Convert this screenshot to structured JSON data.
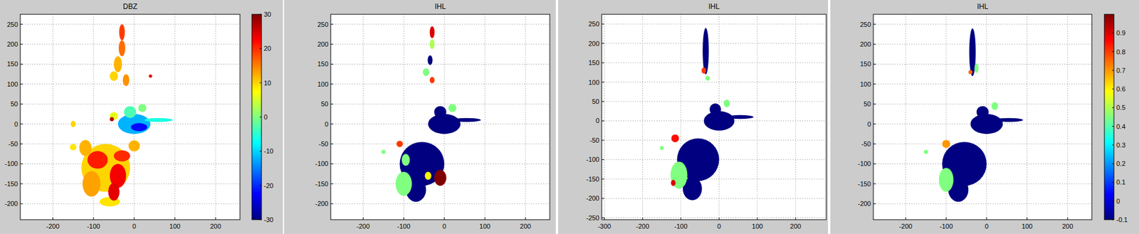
{
  "chart_data": [
    {
      "type": "heatmap",
      "title": "DBZ",
      "xlim": [
        -280,
        260
      ],
      "ylim": [
        -240,
        275
      ],
      "xticks": [
        -200,
        -100,
        0,
        100,
        200
      ],
      "yticks": [
        -200,
        -150,
        -100,
        -50,
        0,
        50,
        100,
        150,
        200,
        250
      ],
      "grid": true,
      "colorbar": true,
      "clim": [
        -30,
        30
      ],
      "cticks": [
        -30,
        -20,
        -10,
        0,
        10,
        20,
        30
      ],
      "blobs": [
        {
          "x": -70,
          "y": -110,
          "rx": 60,
          "ry": 60,
          "value": 10
        },
        {
          "x": -60,
          "y": -195,
          "rx": 25,
          "ry": 12,
          "value": 9
        },
        {
          "x": -105,
          "y": -150,
          "rx": 22,
          "ry": 32,
          "value": 13
        },
        {
          "x": -120,
          "y": -60,
          "rx": 15,
          "ry": 20,
          "value": 12
        },
        {
          "x": -90,
          "y": -90,
          "rx": 25,
          "ry": 22,
          "value": 21
        },
        {
          "x": -40,
          "y": -130,
          "rx": 20,
          "ry": 30,
          "value": 23
        },
        {
          "x": -30,
          "y": -80,
          "rx": 20,
          "ry": 14,
          "value": 20
        },
        {
          "x": -50,
          "y": -170,
          "rx": 14,
          "ry": 22,
          "value": 24
        },
        {
          "x": 0,
          "y": -55,
          "rx": 14,
          "ry": 14,
          "value": 12
        },
        {
          "x": -150,
          "y": -58,
          "rx": 8,
          "ry": 8,
          "value": 9
        },
        {
          "x": -150,
          "y": 0,
          "rx": 6,
          "ry": 8,
          "value": 10
        },
        {
          "x": 0,
          "y": 0,
          "rx": 40,
          "ry": 25,
          "value": -12
        },
        {
          "x": -10,
          "y": 30,
          "rx": 15,
          "ry": 15,
          "value": -3
        },
        {
          "x": 12,
          "y": -8,
          "rx": 20,
          "ry": 10,
          "value": -22
        },
        {
          "x": 20,
          "y": 40,
          "rx": 10,
          "ry": 10,
          "value": 0
        },
        {
          "x": 60,
          "y": 10,
          "rx": 35,
          "ry": 5,
          "value": -6
        },
        {
          "x": -50,
          "y": 20,
          "rx": 10,
          "ry": 10,
          "value": 6
        },
        {
          "x": -55,
          "y": 12,
          "rx": 5,
          "ry": 5,
          "value": 27
        },
        {
          "x": -50,
          "y": 120,
          "rx": 10,
          "ry": 12,
          "value": 10
        },
        {
          "x": -20,
          "y": 110,
          "rx": 8,
          "ry": 15,
          "value": 14
        },
        {
          "x": -40,
          "y": 150,
          "rx": 10,
          "ry": 20,
          "value": 12
        },
        {
          "x": -30,
          "y": 190,
          "rx": 8,
          "ry": 20,
          "value": 16
        },
        {
          "x": -30,
          "y": 230,
          "rx": 7,
          "ry": 20,
          "value": 19
        },
        {
          "x": 40,
          "y": 120,
          "rx": 4,
          "ry": 4,
          "value": 24
        }
      ]
    },
    {
      "type": "heatmap",
      "title": "IHL",
      "xlim": [
        -280,
        260
      ],
      "ylim": [
        -240,
        275
      ],
      "xticks": [
        -200,
        -100,
        0,
        100,
        200
      ],
      "yticks": [
        -200,
        -150,
        -100,
        -50,
        0,
        50,
        100,
        150,
        200,
        250
      ],
      "grid": true,
      "clim": [
        -0.1,
        1
      ],
      "blobs": [
        {
          "x": -55,
          "y": -100,
          "rx": 55,
          "ry": 55,
          "value": -0.1
        },
        {
          "x": -70,
          "y": -165,
          "rx": 25,
          "ry": 30,
          "value": -0.1
        },
        {
          "x": -100,
          "y": -150,
          "rx": 20,
          "ry": 30,
          "value": 0.45
        },
        {
          "x": -95,
          "y": -90,
          "rx": 10,
          "ry": 15,
          "value": 0.45
        },
        {
          "x": -10,
          "y": -135,
          "rx": 15,
          "ry": 20,
          "value": 1
        },
        {
          "x": -40,
          "y": -130,
          "rx": 8,
          "ry": 10,
          "value": 0.6
        },
        {
          "x": -110,
          "y": -50,
          "rx": 8,
          "ry": 8,
          "value": 0.8
        },
        {
          "x": -150,
          "y": -70,
          "rx": 5,
          "ry": 5,
          "value": 0.45
        },
        {
          "x": 0,
          "y": 0,
          "rx": 40,
          "ry": 25,
          "value": -0.1
        },
        {
          "x": -10,
          "y": 30,
          "rx": 15,
          "ry": 15,
          "value": -0.1
        },
        {
          "x": 55,
          "y": 10,
          "rx": 35,
          "ry": 5,
          "value": -0.1
        },
        {
          "x": 20,
          "y": 40,
          "rx": 10,
          "ry": 10,
          "value": 0.45
        },
        {
          "x": -35,
          "y": 160,
          "rx": 6,
          "ry": 12,
          "value": -0.1
        },
        {
          "x": -45,
          "y": 130,
          "rx": 8,
          "ry": 10,
          "value": 0.45
        },
        {
          "x": -30,
          "y": 110,
          "rx": 6,
          "ry": 8,
          "value": 0.8
        },
        {
          "x": -30,
          "y": 200,
          "rx": 6,
          "ry": 12,
          "value": 0.5
        },
        {
          "x": -30,
          "y": 230,
          "rx": 6,
          "ry": 15,
          "value": 0.9
        }
      ]
    },
    {
      "type": "heatmap",
      "title": "IHL",
      "xlim": [
        -307,
        280
      ],
      "ylim": [
        -255,
        275
      ],
      "xticks": [
        -300,
        -200,
        -100,
        0,
        100,
        200
      ],
      "yticks": [
        -250,
        -200,
        -150,
        -100,
        -50,
        0,
        50,
        100,
        150,
        200,
        250
      ],
      "grid": true,
      "clim": [
        -0.1,
        1
      ],
      "blobs": [
        {
          "x": -55,
          "y": -100,
          "rx": 55,
          "ry": 55,
          "value": -0.1
        },
        {
          "x": -70,
          "y": -175,
          "rx": 25,
          "ry": 30,
          "value": -0.1
        },
        {
          "x": -105,
          "y": -140,
          "rx": 22,
          "ry": 35,
          "value": 0.45
        },
        {
          "x": -115,
          "y": -45,
          "rx": 10,
          "ry": 10,
          "value": 0.85
        },
        {
          "x": -120,
          "y": -160,
          "rx": 6,
          "ry": 8,
          "value": 0.9
        },
        {
          "x": -150,
          "y": -70,
          "rx": 5,
          "ry": 5,
          "value": 0.45
        },
        {
          "x": 0,
          "y": 0,
          "rx": 40,
          "ry": 25,
          "value": -0.1
        },
        {
          "x": -10,
          "y": 30,
          "rx": 15,
          "ry": 15,
          "value": -0.1
        },
        {
          "x": 55,
          "y": 10,
          "rx": 35,
          "ry": 5,
          "value": -0.1
        },
        {
          "x": 20,
          "y": 45,
          "rx": 8,
          "ry": 10,
          "value": 0.45
        },
        {
          "x": -35,
          "y": 180,
          "rx": 8,
          "ry": 60,
          "value": -0.1
        },
        {
          "x": -40,
          "y": 130,
          "rx": 6,
          "ry": 8,
          "value": 0.8
        },
        {
          "x": -30,
          "y": 110,
          "rx": 6,
          "ry": 6,
          "value": 0.45
        }
      ]
    },
    {
      "type": "heatmap",
      "title": "IHL",
      "xlim": [
        -280,
        260
      ],
      "ylim": [
        -240,
        275
      ],
      "xticks": [
        -200,
        -100,
        0,
        100,
        200
      ],
      "yticks": [
        -200,
        -150,
        -100,
        -50,
        0,
        50,
        100,
        150,
        200,
        250
      ],
      "grid": true,
      "colorbar": true,
      "clim": [
        -0.1,
        1
      ],
      "cticks": [
        -0.1,
        0,
        0.1,
        0.2,
        0.3,
        0.4,
        0.5,
        0.6,
        0.7,
        0.8,
        0.9
      ],
      "blobs": [
        {
          "x": -55,
          "y": -100,
          "rx": 55,
          "ry": 55,
          "value": -0.1
        },
        {
          "x": -70,
          "y": -165,
          "rx": 25,
          "ry": 30,
          "value": -0.1
        },
        {
          "x": -100,
          "y": -140,
          "rx": 18,
          "ry": 30,
          "value": 0.45
        },
        {
          "x": -100,
          "y": -50,
          "rx": 10,
          "ry": 10,
          "value": 0.7
        },
        {
          "x": -150,
          "y": -70,
          "rx": 5,
          "ry": 5,
          "value": 0.45
        },
        {
          "x": 0,
          "y": 0,
          "rx": 40,
          "ry": 25,
          "value": -0.1
        },
        {
          "x": -10,
          "y": 30,
          "rx": 15,
          "ry": 15,
          "value": -0.1
        },
        {
          "x": 55,
          "y": 10,
          "rx": 35,
          "ry": 5,
          "value": -0.1
        },
        {
          "x": 20,
          "y": 45,
          "rx": 8,
          "ry": 10,
          "value": 0.45
        },
        {
          "x": -35,
          "y": 180,
          "rx": 8,
          "ry": 60,
          "value": -0.1
        },
        {
          "x": -25,
          "y": 140,
          "rx": 5,
          "ry": 12,
          "value": 0.45
        },
        {
          "x": -40,
          "y": 130,
          "rx": 5,
          "ry": 5,
          "value": 0.75
        }
      ]
    }
  ]
}
